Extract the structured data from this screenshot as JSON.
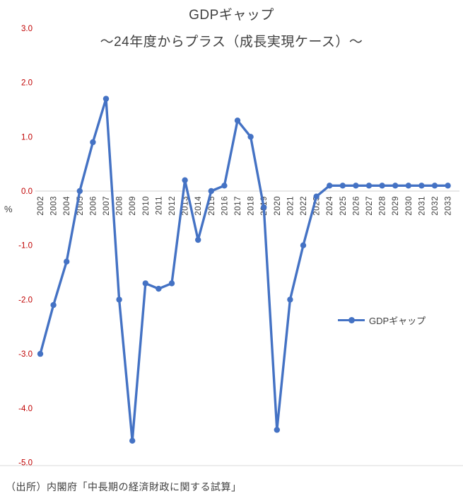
{
  "title": "GDPギャップ",
  "subtitle": "〜24年度からプラス（成長実現ケース）〜",
  "y_axis_unit": "%",
  "legend_label": "GDPギャップ",
  "source": "（出所）内閣府「中長期の経済財政に関する試算」",
  "colors": {
    "line": "#4472C4",
    "y_tick_labels": "#C00000",
    "x_tick_labels": "#404040",
    "axis_line": "#D0D0D0",
    "bottom_line": "#D9D9D9",
    "text": "#404040"
  },
  "chart_data": {
    "type": "line",
    "title": "GDPギャップ",
    "subtitle": "〜24年度からプラス（成長実現ケース）〜",
    "ylabel": "%",
    "ylim": [
      -5.0,
      3.0
    ],
    "yticks": [
      3.0,
      2.0,
      1.0,
      0.0,
      -1.0,
      -2.0,
      -3.0,
      -4.0,
      -5.0
    ],
    "grid": false,
    "legend_position": "middle-right",
    "legend": [
      "GDPギャップ"
    ],
    "categories": [
      2002,
      2003,
      2004,
      2005,
      2006,
      2007,
      2008,
      2009,
      2010,
      2011,
      2012,
      2013,
      2014,
      2015,
      2016,
      2017,
      2018,
      2019,
      2020,
      2021,
      2022,
      2023,
      2024,
      2025,
      2026,
      2027,
      2028,
      2029,
      2030,
      2031,
      2032,
      2033
    ],
    "series": [
      {
        "name": "GDPギャップ",
        "values": [
          -3.0,
          -2.1,
          -1.3,
          0.0,
          0.9,
          1.7,
          -2.0,
          -4.6,
          -1.7,
          -1.8,
          -1.7,
          0.2,
          -0.9,
          0.0,
          0.1,
          1.3,
          1.0,
          -0.3,
          -4.4,
          -2.0,
          -1.0,
          -0.1,
          0.1,
          0.1,
          0.1,
          0.1,
          0.1,
          0.1,
          0.1,
          0.1,
          0.1,
          0.1
        ]
      }
    ]
  }
}
